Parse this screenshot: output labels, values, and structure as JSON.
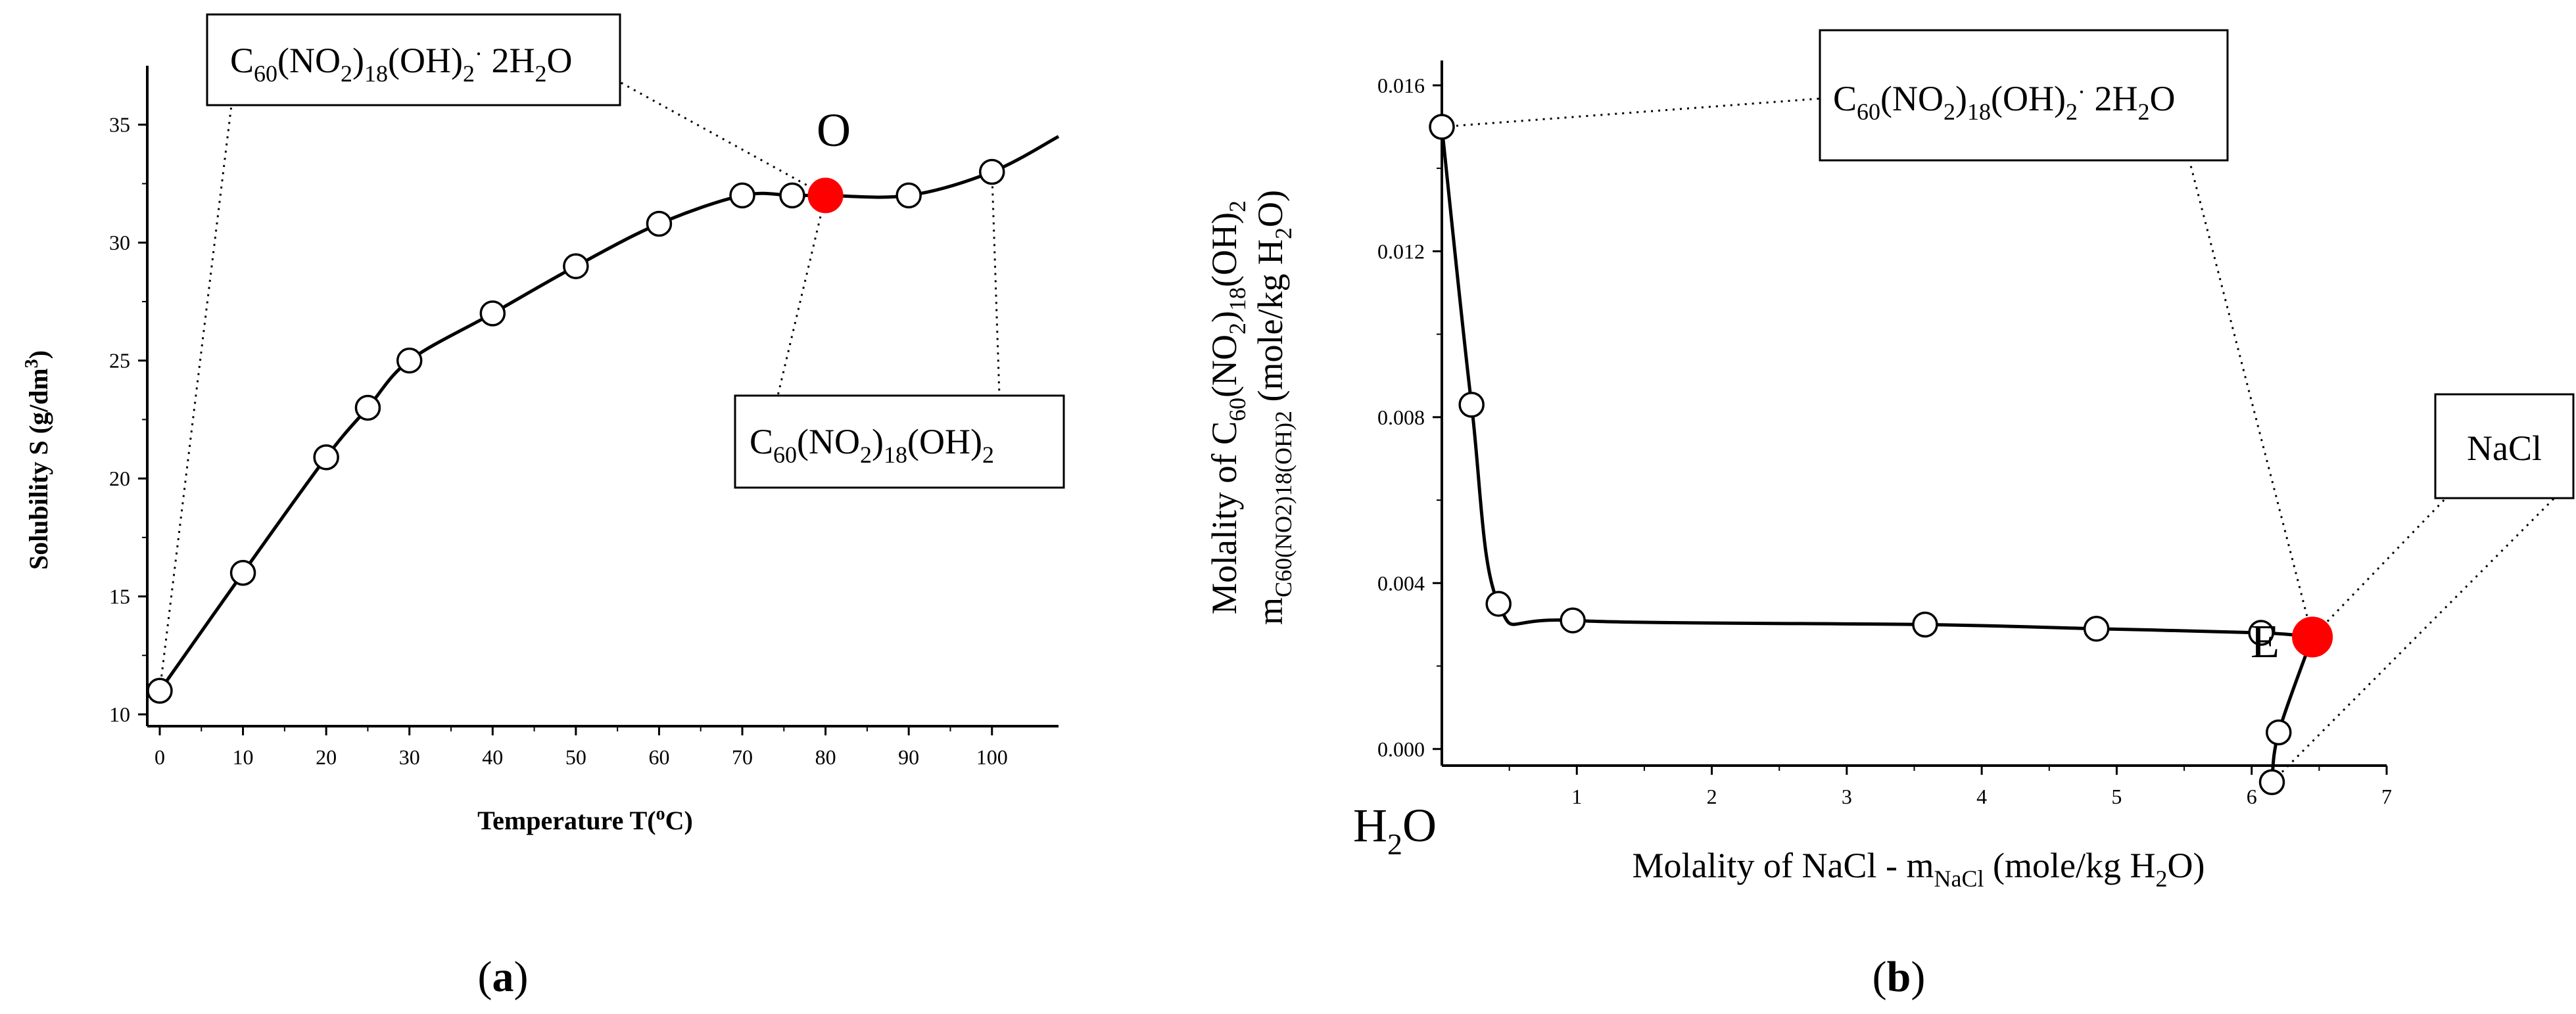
{
  "colors": {
    "highlight": "#ff0000",
    "line": "#000000",
    "marker_fill": "#ffffff"
  },
  "chart_data": [
    {
      "panel_label": "a",
      "type": "line",
      "xlabel": "Temperature T(oC)",
      "ylabel": "Solubility S (g/dm3)",
      "xlim": [
        -1.5,
        108
      ],
      "ylim": [
        9.5,
        37.5
      ],
      "xticks": [
        0,
        10,
        20,
        30,
        40,
        50,
        60,
        70,
        80,
        90,
        100
      ],
      "yticks": [
        10,
        15,
        20,
        25,
        30,
        35
      ],
      "x": [
        0,
        10,
        20,
        25,
        30,
        40,
        50,
        60,
        70,
        76,
        80,
        90,
        100
      ],
      "y": [
        11,
        16,
        20.9,
        23,
        25,
        27,
        29,
        30.8,
        32,
        32,
        32,
        32,
        33
      ],
      "curve_extends_to": {
        "x": 108,
        "y": 34.5
      },
      "highlight": {
        "x": 80,
        "y": 32,
        "label": "O"
      },
      "annotations": [
        {
          "id": "hydrate",
          "text": "C60(NO2)18(OH)2· 2H2O",
          "points_to": [
            [
              0,
              11
            ],
            [
              80,
              32
            ]
          ]
        },
        {
          "id": "anhydrous",
          "text": "C60(NO2)18(OH)2",
          "points_to": [
            [
              80,
              32
            ],
            [
              100,
              33
            ]
          ]
        }
      ]
    },
    {
      "panel_label": "b",
      "type": "line",
      "xlabel": "Molality of NaCl - mNaCl (mole/kg H2O)",
      "ylabel": "Molality of C60(NO2)18(OH)2 mC60(NO2)18(OH)2 (mole/kg H2O)",
      "origin_label": "H2O",
      "xlim": [
        0,
        7
      ],
      "ylim": [
        -0.0004,
        0.0166
      ],
      "xticks": [
        1,
        2,
        3,
        4,
        5,
        6,
        7
      ],
      "yticks": [
        0.0,
        0.004,
        0.008,
        0.012,
        0.016
      ],
      "ytick_labels": [
        "0.000",
        "0.004",
        "0.008",
        "0.012",
        "0.016"
      ],
      "series": [
        {
          "name": "C60(NO2)18(OH)2· 2H2O branch",
          "x": [
            0.0,
            0.22,
            0.42,
            0.97,
            3.58,
            4.85,
            6.07,
            6.45
          ],
          "y": [
            0.015,
            0.0083,
            0.0035,
            0.0031,
            0.003,
            0.0029,
            0.0028,
            0.0027
          ]
        },
        {
          "name": "NaCl branch",
          "x": [
            6.45,
            6.2,
            6.15
          ],
          "y": [
            0.0027,
            0.0004,
            -0.0008
          ]
        }
      ],
      "highlight": {
        "x": 6.45,
        "y": 0.0027,
        "label": "E"
      },
      "annotations": [
        {
          "id": "hydrate",
          "text": "C60(NO2)18(OH)2· 2H2O",
          "points_to": [
            [
              0.0,
              0.015
            ],
            [
              6.45,
              0.0027
            ]
          ]
        },
        {
          "id": "nacl",
          "text": "NaCl",
          "points_to": [
            [
              6.45,
              0.0027
            ],
            [
              6.15,
              -0.0008
            ]
          ]
        }
      ]
    }
  ]
}
